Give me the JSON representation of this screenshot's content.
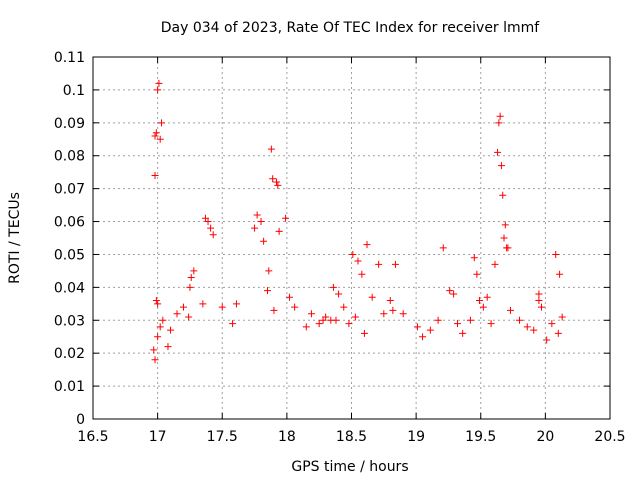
{
  "chart_data": {
    "type": "scatter",
    "title": "Day 034 of 2023, Rate Of TEC Index for receiver lmmf",
    "xlabel": "GPS time / hours",
    "ylabel": "ROTI / TECUs",
    "xlim": [
      16.5,
      20.5
    ],
    "ylim": [
      0,
      0.11
    ],
    "x_ticks": [
      "16.5",
      "17",
      "17.5",
      "18",
      "18.5",
      "19",
      "19.5",
      "20",
      "20.5"
    ],
    "y_ticks": [
      "0",
      "0.01",
      "0.02",
      "0.03",
      "0.04",
      "0.05",
      "0.06",
      "0.07",
      "0.08",
      "0.09",
      "0.1",
      "0.11"
    ],
    "grid": true,
    "marker": "+",
    "colors": {
      "points": "#ff0000",
      "axes": "#000000",
      "grid": "#a0a0a0"
    },
    "series": [
      {
        "x": [
          16.98,
          16.99,
          17.0,
          17.01,
          17.02,
          17.03,
          16.98,
          16.99,
          17.0,
          17.88,
          17.89,
          17.92,
          17.93,
          17.99,
          18.62,
          18.71,
          18.84,
          19.21,
          19.63,
          19.64,
          19.65,
          19.66,
          19.67,
          19.68,
          19.69,
          19.7,
          17.37,
          17.39,
          17.41,
          17.43,
          17.75,
          17.77,
          17.8,
          17.82,
          17.86,
          17.94,
          18.51,
          18.55,
          18.58,
          19.45,
          19.47,
          19.49,
          19.61,
          19.71,
          20.08,
          20.11,
          17.26,
          17.28,
          18.36,
          18.4,
          18.44,
          19.26,
          19.29,
          19.55,
          19.95,
          19.97,
          18.28,
          18.3,
          18.34,
          18.8,
          18.82,
          18.9,
          19.95,
          17.24,
          17.35,
          17.5,
          17.61,
          17.58,
          17.85,
          17.9,
          18.02,
          18.06,
          18.15,
          18.19,
          18.25,
          18.38,
          18.48,
          18.53,
          18.6,
          18.66,
          18.75,
          19.01,
          19.05,
          19.11,
          19.17,
          19.32,
          19.36,
          19.42,
          19.52,
          19.58,
          19.73,
          19.8,
          19.86,
          19.91,
          20.01,
          20.05,
          20.1,
          20.13,
          16.97,
          16.98,
          17.0,
          17.02,
          17.04,
          17.08,
          17.1,
          17.15,
          17.2,
          17.25
        ],
        "y": [
          0.086,
          0.087,
          0.1,
          0.102,
          0.085,
          0.09,
          0.074,
          0.036,
          0.035,
          0.082,
          0.073,
          0.072,
          0.071,
          0.061,
          0.053,
          0.047,
          0.047,
          0.052,
          0.081,
          0.09,
          0.092,
          0.077,
          0.068,
          0.055,
          0.059,
          0.052,
          0.061,
          0.06,
          0.058,
          0.056,
          0.058,
          0.062,
          0.06,
          0.054,
          0.045,
          0.057,
          0.05,
          0.048,
          0.044,
          0.049,
          0.044,
          0.036,
          0.047,
          0.052,
          0.05,
          0.044,
          0.043,
          0.045,
          0.04,
          0.038,
          0.034,
          0.039,
          0.038,
          0.037,
          0.038,
          0.034,
          0.03,
          0.031,
          0.03,
          0.036,
          0.033,
          0.032,
          0.036,
          0.031,
          0.035,
          0.034,
          0.035,
          0.029,
          0.039,
          0.033,
          0.037,
          0.034,
          0.028,
          0.032,
          0.029,
          0.03,
          0.029,
          0.031,
          0.026,
          0.037,
          0.032,
          0.028,
          0.025,
          0.027,
          0.03,
          0.029,
          0.026,
          0.03,
          0.034,
          0.029,
          0.033,
          0.03,
          0.028,
          0.027,
          0.024,
          0.029,
          0.026,
          0.031,
          0.021,
          0.018,
          0.025,
          0.028,
          0.03,
          0.022,
          0.027,
          0.032,
          0.034,
          0.04
        ]
      }
    ]
  }
}
